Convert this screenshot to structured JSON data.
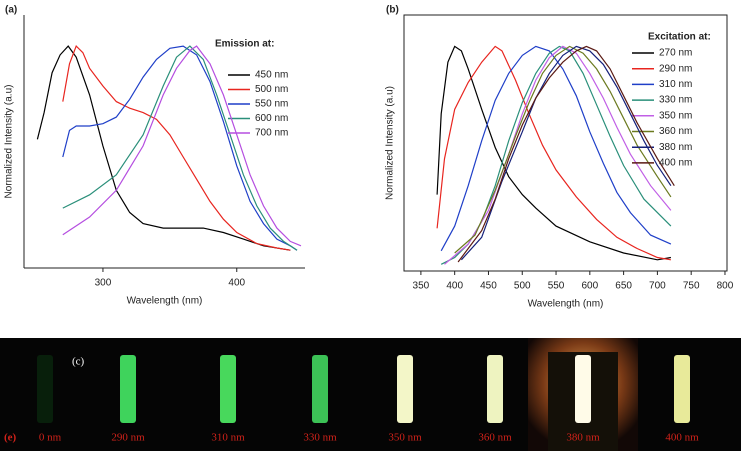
{
  "chart_data": [
    {
      "type": "line",
      "panel_label": "(a)",
      "legend_title": "Emission at:",
      "xlabel": "Wavelength (nm)",
      "ylabel": "Normalized Intensity (a.u)",
      "xlim": [
        241,
        451
      ],
      "xticks": [
        300,
        400
      ],
      "ylim": [
        0,
        1.14
      ],
      "series": [
        {
          "name": "450 nm",
          "color": "#000000",
          "x": [
            251,
            256,
            262,
            268,
            274,
            280,
            290,
            300,
            310,
            320,
            330,
            345,
            360,
            375,
            390,
            405,
            420,
            440
          ],
          "values": [
            0.58,
            0.7,
            0.88,
            0.96,
            1.0,
            0.95,
            0.78,
            0.55,
            0.35,
            0.25,
            0.2,
            0.18,
            0.18,
            0.18,
            0.16,
            0.13,
            0.1,
            0.08
          ]
        },
        {
          "name": "500 nm",
          "color": "#e8251f",
          "x": [
            270,
            275,
            280,
            285,
            290,
            300,
            310,
            320,
            330,
            340,
            350,
            360,
            370,
            380,
            390,
            400,
            415,
            430,
            440
          ],
          "values": [
            0.75,
            0.92,
            1.0,
            0.97,
            0.9,
            0.82,
            0.75,
            0.72,
            0.7,
            0.67,
            0.6,
            0.5,
            0.4,
            0.3,
            0.22,
            0.16,
            0.11,
            0.09,
            0.08
          ]
        },
        {
          "name": "550 nm",
          "color": "#1f3fc8",
          "x": [
            270,
            275,
            280,
            290,
            300,
            310,
            320,
            330,
            340,
            350,
            360,
            370,
            380,
            390,
            400,
            410,
            420,
            430,
            440,
            445
          ],
          "values": [
            0.5,
            0.62,
            0.64,
            0.64,
            0.65,
            0.68,
            0.76,
            0.86,
            0.94,
            0.99,
            1.0,
            0.96,
            0.84,
            0.66,
            0.46,
            0.3,
            0.2,
            0.13,
            0.1,
            0.08
          ]
        },
        {
          "name": "600 nm",
          "color": "#2a8f7a",
          "x": [
            270,
            290,
            310,
            330,
            345,
            355,
            365,
            375,
            385,
            395,
            405,
            415,
            425,
            435,
            445
          ],
          "values": [
            0.27,
            0.33,
            0.42,
            0.6,
            0.82,
            0.95,
            1.0,
            0.94,
            0.78,
            0.6,
            0.42,
            0.28,
            0.18,
            0.12,
            0.08
          ]
        },
        {
          "name": "700 nm",
          "color": "#b54ee0",
          "x": [
            270,
            290,
            310,
            330,
            345,
            355,
            365,
            370,
            380,
            390,
            400,
            410,
            420,
            430,
            440,
            448
          ],
          "values": [
            0.15,
            0.23,
            0.35,
            0.55,
            0.78,
            0.9,
            0.98,
            1.0,
            0.92,
            0.78,
            0.6,
            0.42,
            0.28,
            0.18,
            0.12,
            0.1
          ]
        }
      ]
    },
    {
      "type": "line",
      "panel_label": "(b)",
      "legend_title": "Excitation at:",
      "xlabel": "Wavelength (nm)",
      "ylabel": "Normalized Intensity (a.u)",
      "xlim": [
        325,
        803
      ],
      "xticks": [
        350,
        400,
        450,
        500,
        550,
        600,
        650,
        700,
        750,
        800
      ],
      "ylim": [
        0,
        1.14
      ],
      "series": [
        {
          "name": "270 nm",
          "color": "#000000",
          "x": [
            374,
            380,
            390,
            400,
            410,
            420,
            440,
            460,
            480,
            500,
            520,
            550,
            600,
            650,
            700,
            720
          ],
          "values": [
            0.34,
            0.7,
            0.93,
            1.0,
            0.98,
            0.9,
            0.72,
            0.55,
            0.42,
            0.34,
            0.28,
            0.2,
            0.13,
            0.08,
            0.05,
            0.06
          ]
        },
        {
          "name": "290 nm",
          "color": "#e8251f",
          "x": [
            374,
            385,
            400,
            420,
            440,
            460,
            470,
            490,
            510,
            530,
            550,
            580,
            610,
            640,
            670,
            700,
            720
          ],
          "values": [
            0.19,
            0.5,
            0.72,
            0.84,
            0.93,
            1.0,
            0.98,
            0.85,
            0.7,
            0.56,
            0.45,
            0.33,
            0.23,
            0.15,
            0.1,
            0.06,
            0.05
          ]
        },
        {
          "name": "310 nm",
          "color": "#1f3fc8",
          "x": [
            380,
            400,
            420,
            440,
            460,
            480,
            500,
            520,
            540,
            560,
            580,
            600,
            620,
            640,
            660,
            690,
            720
          ],
          "values": [
            0.09,
            0.2,
            0.38,
            0.58,
            0.76,
            0.88,
            0.96,
            1.0,
            0.98,
            0.9,
            0.78,
            0.62,
            0.48,
            0.35,
            0.26,
            0.16,
            0.12
          ]
        },
        {
          "name": "330 nm",
          "color": "#2a8f7a",
          "x": [
            380,
            400,
            420,
            440,
            460,
            480,
            500,
            520,
            540,
            555,
            570,
            590,
            610,
            630,
            650,
            680,
            720
          ],
          "values": [
            0.03,
            0.06,
            0.12,
            0.22,
            0.38,
            0.58,
            0.75,
            0.88,
            0.97,
            1.0,
            0.98,
            0.88,
            0.74,
            0.6,
            0.47,
            0.32,
            0.2
          ]
        },
        {
          "name": "350 nm",
          "color": "#c15fe6",
          "x": [
            385,
            420,
            450,
            480,
            500,
            520,
            540,
            560,
            580,
            600,
            620,
            640,
            660,
            690,
            720
          ],
          "values": [
            0.03,
            0.12,
            0.27,
            0.52,
            0.7,
            0.85,
            0.95,
            1.0,
            0.97,
            0.88,
            0.77,
            0.64,
            0.52,
            0.38,
            0.27
          ]
        },
        {
          "name": "360 nm",
          "color": "#6b7a1f",
          "x": [
            400,
            430,
            460,
            490,
            510,
            530,
            550,
            570,
            590,
            610,
            630,
            650,
            670,
            700,
            720
          ],
          "values": [
            0.08,
            0.16,
            0.36,
            0.6,
            0.75,
            0.88,
            0.96,
            1.0,
            0.97,
            0.9,
            0.8,
            0.68,
            0.56,
            0.42,
            0.33
          ]
        },
        {
          "name": "380 nm",
          "color": "#15207a",
          "x": [
            410,
            440,
            470,
            500,
            520,
            540,
            560,
            580,
            600,
            620,
            640,
            660,
            680,
            700,
            720
          ],
          "values": [
            0.05,
            0.15,
            0.4,
            0.62,
            0.77,
            0.88,
            0.96,
            1.0,
            0.98,
            0.92,
            0.82,
            0.7,
            0.58,
            0.47,
            0.38
          ]
        },
        {
          "name": "400 nm",
          "color": "#5a1a14",
          "x": [
            405,
            420,
            440,
            460,
            480,
            500,
            520,
            540,
            560,
            580,
            595,
            610,
            630,
            650,
            670,
            700,
            725
          ],
          "values": [
            0.04,
            0.1,
            0.18,
            0.32,
            0.5,
            0.65,
            0.77,
            0.86,
            0.93,
            0.98,
            1.0,
            0.98,
            0.9,
            0.78,
            0.66,
            0.5,
            0.38
          ]
        }
      ]
    }
  ],
  "photo": {
    "panel_label": "(c)",
    "tag": "(e)",
    "labels": [
      "0 nm",
      "290 nm",
      "310 nm",
      "330 nm",
      "350 nm",
      "360 nm",
      "380 nm",
      "400 nm"
    ]
  }
}
